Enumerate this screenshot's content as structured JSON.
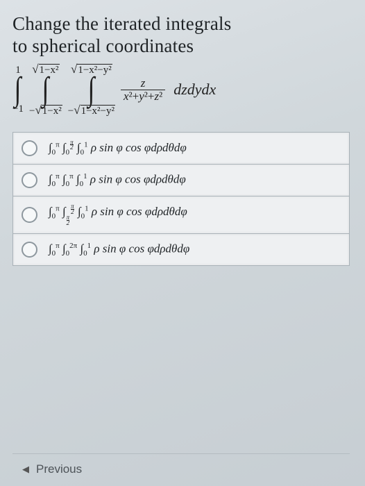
{
  "question": {
    "line1": "Change the iterated integrals",
    "line2": "to spherical coordinates"
  },
  "integral": {
    "x_low": "−1",
    "x_high": "1",
    "y_low": "−√(1−x²)",
    "y_high": "√(1−x²)",
    "z_low": "−√(1−x²−y²)",
    "z_high": "√(1−x²−y²)",
    "integrand_num": "z",
    "integrand_den": "x²+y²+z²",
    "diff": "dzdydx"
  },
  "options": [
    {
      "html": "∫<span class='sub'>0</span><span class='sup'>π</span> ∫<span class='sub'>0</span><span class='sfrac'><span>π</span><span class='sb'></span><span>2</span></span> ∫<span class='sub'>0</span><span class='sup'>1</span> ρ sin φ cos φdρdθdφ"
    },
    {
      "html": "∫<span class='sub'>0</span><span class='sup'>π</span> ∫<span class='sub'>0</span><span class='sup'>π</span> ∫<span class='sub'>0</span><span class='sup'>1</span> ρ sin φ cos φdρdθdφ"
    },
    {
      "html": "∫<span class='sub'>0</span><span class='sup'>π</span> ∫<span class='sfrac' style='vertical-align:-0.35em;'><span>π</span><span class='sb'></span><span>2</span></span><span class='sfrac'><span>π</span><span class='sb'></span><span>2</span></span> ∫<span class='sub'>0</span><span class='sup'>1</span> ρ sin φ cos φdρdθdφ"
    },
    {
      "html": "∫<span class='sub'>0</span><span class='sup'>π</span> ∫<span class='sub'>0</span><span class='sup'>2π</span> ∫<span class='sub'>0</span><span class='sup'>1</span> ρ sin φ cos φdρdθdφ"
    }
  ],
  "nav": {
    "previous": "Previous"
  },
  "style": {
    "radio_border": "#8d979e",
    "option_bg": "#eef0f2",
    "option_border": "#a9b2b8"
  }
}
